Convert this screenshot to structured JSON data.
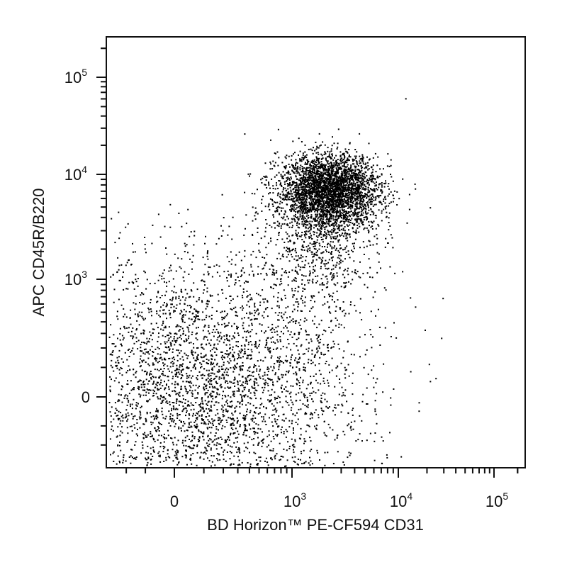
{
  "chart_data": {
    "type": "scatter",
    "title": "",
    "xlabel": "BD Horizon™ PE-CF594 CD31",
    "ylabel": "APC CD45R/B220",
    "x_scale": "biexponential",
    "y_scale": "biexponential",
    "xlim": [
      -300,
      250000
    ],
    "ylim": [
      -300,
      250000
    ],
    "x_tick_labels": [
      {
        "value": 0,
        "base": "0",
        "exp": ""
      },
      {
        "value": 1000,
        "base": "10",
        "exp": "3"
      },
      {
        "value": 10000,
        "base": "10",
        "exp": "4"
      },
      {
        "value": 100000,
        "base": "10",
        "exp": "5"
      }
    ],
    "y_tick_labels": [
      {
        "value": 0,
        "base": "0",
        "exp": ""
      },
      {
        "value": 1000,
        "base": "10",
        "exp": "3"
      },
      {
        "value": 10000,
        "base": "10",
        "exp": "4"
      },
      {
        "value": 100000,
        "base": "10",
        "exp": "5"
      }
    ],
    "populations": [
      {
        "center": [
          80,
          30
        ],
        "spread": [
          0.55,
          0.5
        ],
        "events": 3600
      },
      {
        "center": [
          2300,
          7200
        ],
        "spread": [
          0.22,
          0.17
        ],
        "events": 3200
      },
      {
        "center": [
          1800,
          2800
        ],
        "spread": [
          0.25,
          0.3
        ],
        "events": 700
      },
      {
        "center": [
          1500,
          120
        ],
        "spread": [
          0.45,
          0.55
        ],
        "events": 350
      }
    ],
    "marker_color": "#000000",
    "grid": false,
    "legend": "none"
  }
}
